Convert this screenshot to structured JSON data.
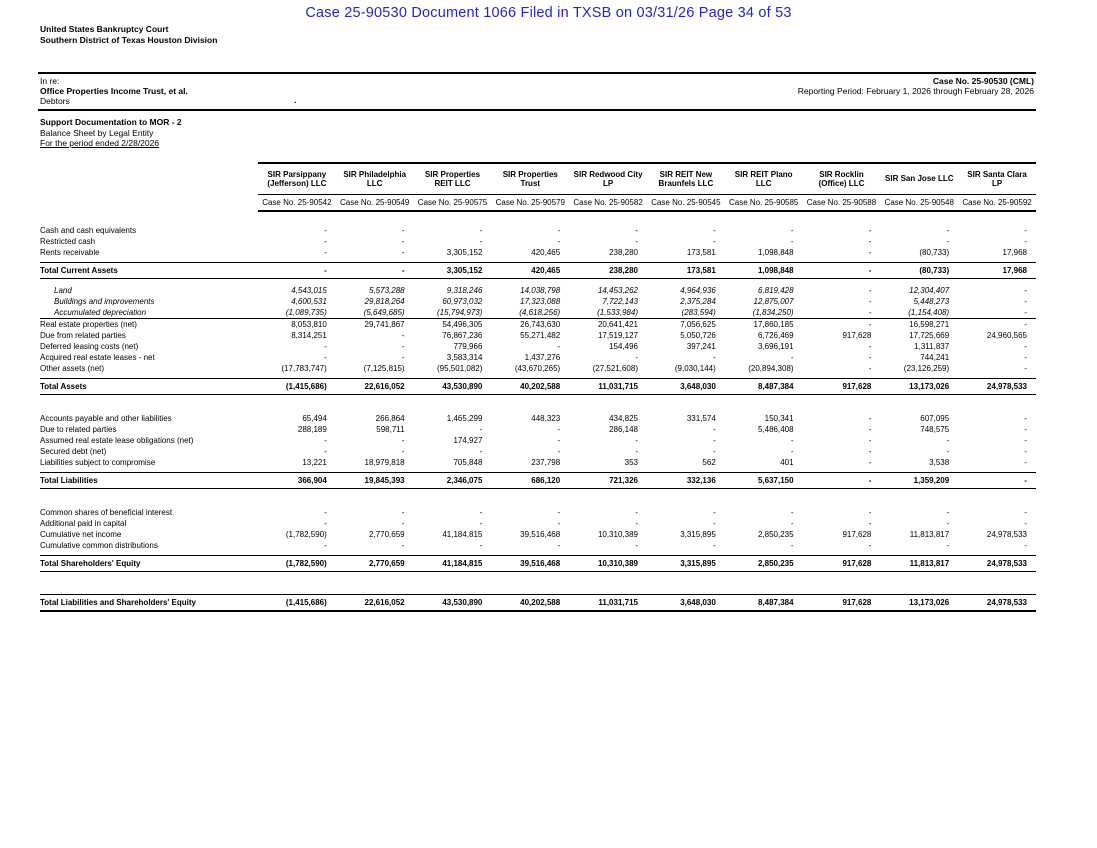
{
  "stamp": {
    "text": "Case 25-90530   Document 1066   Filed in TXSB on 03/31/26   Page 34 of 53",
    "color": "#2525cb"
  },
  "court": {
    "line1": "United States Bankruptcy Court",
    "line2": "Southern District of Texas Houston Division"
  },
  "case_block": {
    "in_re": "In re:",
    "debtor_name": "Office Properties Income Trust, et al.",
    "debtors_label": "Debtors",
    "center_dot": ".",
    "case_no": "Case No. 25-90530 (CML)",
    "reporting_period": "Reporting Period: February 1, 2026 through February 28, 2026"
  },
  "doc_title": {
    "line1": "Support Documentation to MOR - 2",
    "line2": "Balance Sheet by Legal Entity",
    "line3": "For the period ended 2/28/2026"
  },
  "table": {
    "entities": [
      {
        "name": "SIR Parsippany (Jefferson) LLC",
        "case_no": "Case No. 25-90542"
      },
      {
        "name": "SIR Philadelphia LLC",
        "case_no": "Case No. 25-90549"
      },
      {
        "name": "SIR Properties REIT LLC",
        "case_no": "Case No. 25-90575"
      },
      {
        "name": "SIR Properties Trust",
        "case_no": "Case No. 25-90579"
      },
      {
        "name": "SIR Redwood City LP",
        "case_no": "Case No. 25-90582"
      },
      {
        "name": "SIR REIT New Braunfels LLC",
        "case_no": "Case No. 25-90545"
      },
      {
        "name": "SIR REIT Plano LLC",
        "case_no": "Case No. 25-90585"
      },
      {
        "name": "SIR Rocklin (Office) LLC",
        "case_no": "Case No. 25-90588"
      },
      {
        "name": "SIR San Jose LLC",
        "case_no": "Case No. 25-90548"
      },
      {
        "name": "SIR Santa Clara LP",
        "case_no": "Case No. 25-90592"
      }
    ],
    "rows": [
      {
        "label": "Cash and cash equivalents",
        "style": "normal",
        "values": [
          "-",
          "-",
          "-",
          "-",
          "-",
          "-",
          "-",
          "-",
          "-",
          "-"
        ]
      },
      {
        "label": "Restricted cash",
        "style": "normal",
        "values": [
          "-",
          "-",
          "-",
          "-",
          "-",
          "-",
          "-",
          "-",
          "-",
          "-"
        ]
      },
      {
        "label": "Rents receivable",
        "style": "normal",
        "values": [
          "-",
          "-",
          "3,305,152",
          "420,465",
          "238,280",
          "173,581",
          "1,098,848",
          "-",
          "(80,733)",
          "17,968"
        ]
      },
      {
        "label": "Total Current Assets",
        "style": "total",
        "values": [
          "-",
          "-",
          "3,305,152",
          "420,465",
          "238,280",
          "173,581",
          "1,098,848",
          "-",
          "(80,733)",
          "17,968"
        ]
      },
      {
        "label": "Land",
        "style": "italic",
        "values": [
          "4,543,015",
          "5,573,288",
          "9,318,246",
          "14,038,798",
          "14,453,262",
          "4,964,936",
          "6,819,428",
          "-",
          "12,304,407",
          "-"
        ]
      },
      {
        "label": "Buildings and improvements",
        "style": "italic",
        "values": [
          "4,600,531",
          "29,818,264",
          "60,973,032",
          "17,323,088",
          "7,722,143",
          "2,375,284",
          "12,875,007",
          "-",
          "5,448,273",
          "-"
        ]
      },
      {
        "label": "Accumulated depreciation",
        "style": "italic-underline",
        "values": [
          "(1,089,735)",
          "(5,649,685)",
          "(15,794,973)",
          "(4,618,256)",
          "(1,533,984)",
          "(283,594)",
          "(1,834,250)",
          "-",
          "(1,154,408)",
          "-"
        ]
      },
      {
        "label": "Real estate properties (net)",
        "style": "normal",
        "values": [
          "8,053,810",
          "29,741,867",
          "54,496,305",
          "26,743,630",
          "20,641,421",
          "7,056,625",
          "17,860,185",
          "-",
          "16,598,271",
          "-"
        ]
      },
      {
        "label": "Due from related parties",
        "style": "normal",
        "values": [
          "8,314,251",
          "-",
          "76,867,236",
          "55,271,482",
          "17,519,127",
          "5,050,726",
          "6,726,469",
          "917,628",
          "17,725,669",
          "24,960,565"
        ]
      },
      {
        "label": "Deferred leasing costs (net)",
        "style": "normal",
        "values": [
          "-",
          "-",
          "779,966",
          "-",
          "154,496",
          "397,241",
          "3,696,191",
          "-",
          "1,311,837",
          "-"
        ]
      },
      {
        "label": "Acquired real estate leases - net",
        "style": "normal",
        "values": [
          "-",
          "-",
          "3,583,314",
          "1,437,276",
          "-",
          "-",
          "-",
          "-",
          "744,241",
          "-"
        ]
      },
      {
        "label": "Other assets (net)",
        "style": "normal",
        "values": [
          "(17,783,747)",
          "(7,125,815)",
          "(95,501,082)",
          "(43,670,265)",
          "(27,521,608)",
          "(9,030,144)",
          "(20,894,308)",
          "-",
          "(23,126,259)",
          "-"
        ]
      },
      {
        "label": "Total Assets",
        "style": "total",
        "values": [
          "(1,415,686)",
          "22,616,052",
          "43,530,890",
          "40,202,588",
          "11,031,715",
          "3,648,030",
          "8,487,384",
          "917,628",
          "13,173,026",
          "24,978,533"
        ]
      },
      {
        "label": "",
        "style": "spacer",
        "values": []
      },
      {
        "label": "Accounts payable and other liabilities",
        "style": "normal",
        "values": [
          "65,494",
          "266,864",
          "1,465,299",
          "448,323",
          "434,825",
          "331,574",
          "150,341",
          "-",
          "607,095",
          "-"
        ]
      },
      {
        "label": "Due to related parties",
        "style": "normal",
        "values": [
          "288,189",
          "598,711",
          "-",
          "-",
          "286,148",
          "-",
          "5,486,408",
          "-",
          "748,575",
          "-"
        ]
      },
      {
        "label": "Assumed real estate lease obligations (net)",
        "style": "normal",
        "values": [
          "-",
          "-",
          "174,927",
          "-",
          "-",
          "-",
          "-",
          "-",
          "-",
          "-"
        ]
      },
      {
        "label": "Secured debt (net)",
        "style": "normal",
        "values": [
          "-",
          "-",
          "-",
          "-",
          "-",
          "-",
          "-",
          "-",
          "-",
          "-"
        ]
      },
      {
        "label": "Liabilities subject to compromise",
        "style": "normal",
        "values": [
          "13,221",
          "18,979,818",
          "705,848",
          "237,798",
          "353",
          "562",
          "401",
          "-",
          "3,538",
          "-"
        ]
      },
      {
        "label": "Total Liabilities",
        "style": "total",
        "values": [
          "366,904",
          "19,845,393",
          "2,346,075",
          "686,120",
          "721,326",
          "332,136",
          "5,637,150",
          "-",
          "1,359,209",
          "-"
        ]
      },
      {
        "label": "",
        "style": "spacer",
        "values": []
      },
      {
        "label": "Common shares of beneficial interest",
        "style": "normal",
        "values": [
          "-",
          "-",
          "-",
          "-",
          "-",
          "-",
          "-",
          "-",
          "-",
          "-"
        ]
      },
      {
        "label": "Additional paid in capital",
        "style": "normal",
        "values": [
          "-",
          "-",
          "-",
          "-",
          "-",
          "-",
          "-",
          "-",
          "-",
          "-"
        ]
      },
      {
        "label": "Cumulative net income",
        "style": "normal",
        "values": [
          "(1,782,590)",
          "2,770,659",
          "41,184,815",
          "39,516,468",
          "10,310,389",
          "3,315,895",
          "2,850,235",
          "917,628",
          "11,813,817",
          "24,978,533"
        ]
      },
      {
        "label": "Cumulative common distributions",
        "style": "normal",
        "values": [
          "-",
          "-",
          "-",
          "-",
          "-",
          "-",
          "-",
          "-",
          "-",
          "-"
        ]
      },
      {
        "label": "Total Shareholders' Equity",
        "style": "total",
        "values": [
          "(1,782,590)",
          "2,770,659",
          "41,184,815",
          "39,516,468",
          "10,310,389",
          "3,315,895",
          "2,850,235",
          "917,628",
          "11,813,817",
          "24,978,533"
        ]
      },
      {
        "label": "",
        "style": "spacer",
        "values": []
      },
      {
        "label": "Total Liabilities and Shareholders' Equity",
        "style": "grand",
        "values": [
          "(1,415,686)",
          "22,616,052",
          "43,530,890",
          "40,202,588",
          "11,031,715",
          "3,648,030",
          "8,487,384",
          "917,628",
          "13,173,026",
          "24,978,533"
        ]
      }
    ]
  }
}
